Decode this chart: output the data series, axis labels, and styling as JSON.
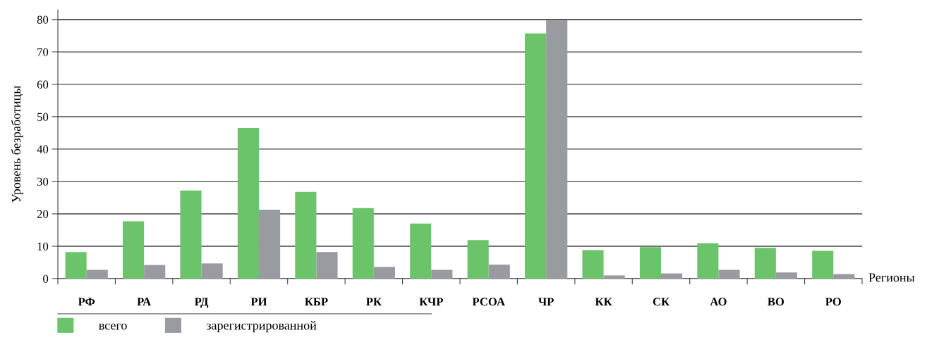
{
  "chart_data": {
    "type": "bar",
    "ylabel": "Уровень безработицы",
    "xlabel": "Регионы",
    "categories": [
      "РФ",
      "РА",
      "РД",
      "РИ",
      "КБР",
      "РК",
      "КЧР",
      "РСОА",
      "ЧР",
      "КК",
      "СК",
      "АО",
      "ВО",
      "РО"
    ],
    "series": [
      {
        "name": "всего",
        "color": "#6cc46a",
        "values": [
          8.2,
          17.7,
          27.2,
          46.5,
          26.8,
          21.8,
          17.0,
          11.9,
          75.7,
          8.8,
          9.7,
          10.9,
          9.5,
          8.6
        ]
      },
      {
        "name": "зарегистрированной",
        "color": "#9a9ba0",
        "values": [
          2.7,
          4.2,
          4.7,
          21.3,
          8.2,
          3.6,
          2.7,
          4.3,
          79.8,
          1.0,
          1.6,
          2.7,
          1.9,
          1.4
        ]
      }
    ],
    "ylim": [
      0,
      83
    ],
    "yticks": [
      0,
      10,
      20,
      30,
      40,
      50,
      60,
      70,
      80
    ],
    "grid": "y",
    "legend": "bottom left"
  }
}
